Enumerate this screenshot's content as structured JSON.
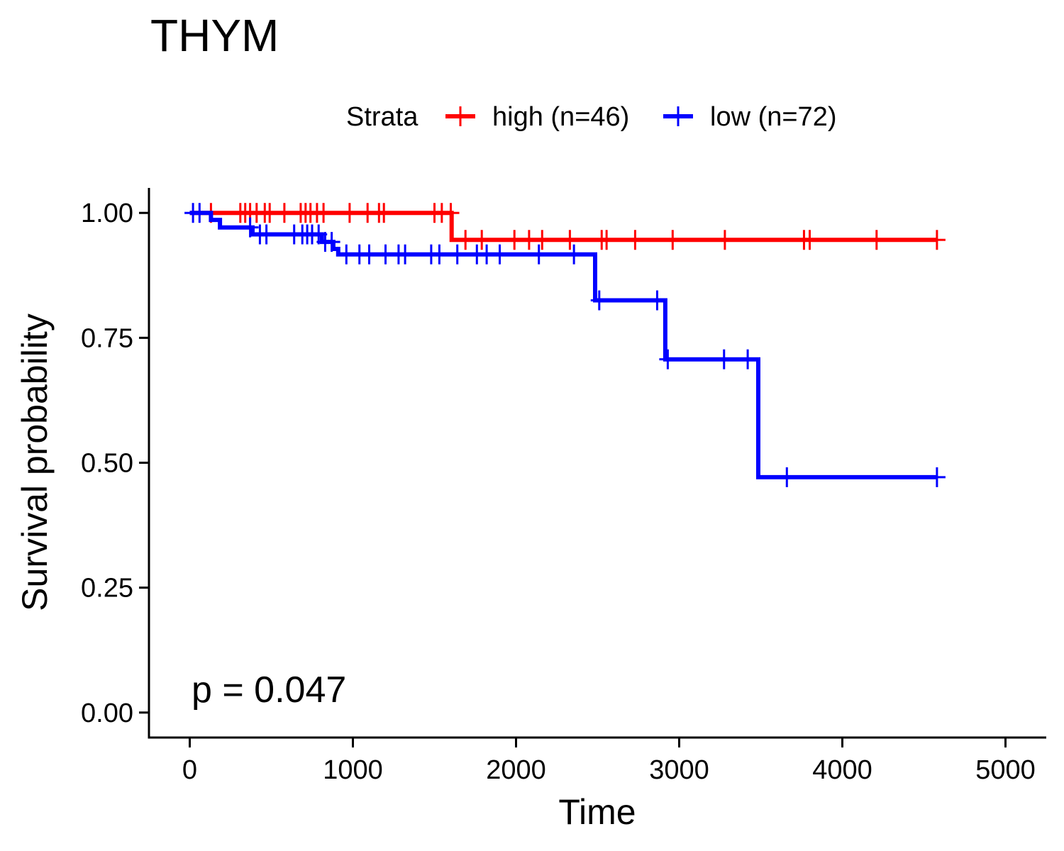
{
  "chart_data": {
    "type": "line",
    "title": "THYM",
    "xlabel": "Time",
    "ylabel": "Survival probability",
    "xlim": [
      -250,
      5250
    ],
    "ylim": [
      -0.05,
      1.05
    ],
    "x_ticks": [
      "0",
      "1000",
      "2000",
      "3000",
      "4000",
      "5000"
    ],
    "y_ticks": [
      "0.00",
      "0.25",
      "0.50",
      "0.75",
      "1.00"
    ],
    "legend": {
      "title": "Strata",
      "placement": "top"
    },
    "annotation": "p = 0.047",
    "series": [
      {
        "name": "high (n=46)",
        "color": "#ff0000",
        "steps": [
          [
            0,
            1.0
          ],
          [
            1605,
            1.0
          ],
          [
            1605,
            0.946
          ],
          [
            4580,
            0.946
          ]
        ],
        "censor_marks": [
          [
            130,
            1.0
          ],
          [
            310,
            1.0
          ],
          [
            340,
            1.0
          ],
          [
            370,
            1.0
          ],
          [
            410,
            1.0
          ],
          [
            460,
            1.0
          ],
          [
            490,
            1.0
          ],
          [
            580,
            1.0
          ],
          [
            680,
            1.0
          ],
          [
            710,
            1.0
          ],
          [
            740,
            1.0
          ],
          [
            780,
            1.0
          ],
          [
            820,
            1.0
          ],
          [
            980,
            1.0
          ],
          [
            1090,
            1.0
          ],
          [
            1160,
            1.0
          ],
          [
            1190,
            1.0
          ],
          [
            1500,
            1.0
          ],
          [
            1545,
            1.0
          ],
          [
            1600,
            1.0
          ],
          [
            1690,
            0.946
          ],
          [
            1790,
            0.946
          ],
          [
            1990,
            0.946
          ],
          [
            2080,
            0.946
          ],
          [
            2160,
            0.946
          ],
          [
            2330,
            0.946
          ],
          [
            2525,
            0.946
          ],
          [
            2555,
            0.946
          ],
          [
            2730,
            0.946
          ],
          [
            2960,
            0.946
          ],
          [
            3280,
            0.946
          ],
          [
            3765,
            0.946
          ],
          [
            3800,
            0.946
          ],
          [
            4210,
            0.946
          ],
          [
            4580,
            0.946
          ]
        ]
      },
      {
        "name": "low (n=72)",
        "color": "#0000ff",
        "steps": [
          [
            0,
            1.0
          ],
          [
            130,
            1.0
          ],
          [
            130,
            0.986
          ],
          [
            185,
            0.986
          ],
          [
            185,
            0.971
          ],
          [
            385,
            0.971
          ],
          [
            385,
            0.957
          ],
          [
            810,
            0.957
          ],
          [
            810,
            0.942
          ],
          [
            880,
            0.942
          ],
          [
            880,
            0.928
          ],
          [
            910,
            0.928
          ],
          [
            910,
            0.917
          ],
          [
            2485,
            0.917
          ],
          [
            2485,
            0.825
          ],
          [
            2915,
            0.825
          ],
          [
            2915,
            0.707
          ],
          [
            3485,
            0.707
          ],
          [
            3485,
            0.471
          ],
          [
            4580,
            0.471
          ]
        ],
        "censor_marks": [
          [
            20,
            1.0
          ],
          [
            60,
            1.0
          ],
          [
            370,
            0.971
          ],
          [
            430,
            0.957
          ],
          [
            470,
            0.957
          ],
          [
            640,
            0.957
          ],
          [
            690,
            0.957
          ],
          [
            720,
            0.957
          ],
          [
            750,
            0.957
          ],
          [
            790,
            0.957
          ],
          [
            830,
            0.942
          ],
          [
            870,
            0.942
          ],
          [
            960,
            0.917
          ],
          [
            1040,
            0.917
          ],
          [
            1100,
            0.917
          ],
          [
            1200,
            0.917
          ],
          [
            1280,
            0.917
          ],
          [
            1320,
            0.917
          ],
          [
            1480,
            0.917
          ],
          [
            1530,
            0.917
          ],
          [
            1640,
            0.917
          ],
          [
            1760,
            0.917
          ],
          [
            1820,
            0.917
          ],
          [
            1900,
            0.917
          ],
          [
            2140,
            0.917
          ],
          [
            2355,
            0.917
          ],
          [
            2510,
            0.825
          ],
          [
            2865,
            0.825
          ],
          [
            2930,
            0.707
          ],
          [
            3275,
            0.707
          ],
          [
            3420,
            0.707
          ],
          [
            3660,
            0.471
          ],
          [
            4580,
            0.471
          ]
        ]
      }
    ]
  }
}
